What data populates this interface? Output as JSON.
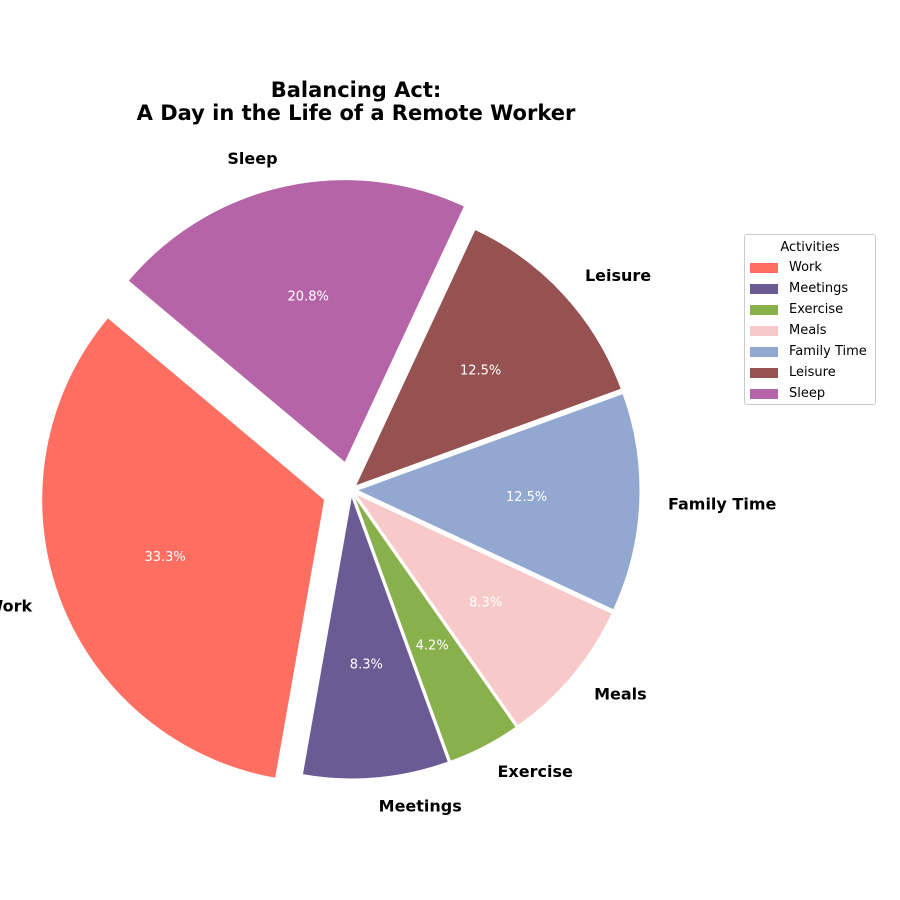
{
  "chart_data": {
    "type": "pie",
    "title_lines": [
      "Balancing Act:",
      "A Day in the Life of a Remote Worker"
    ],
    "categories": [
      "Work",
      "Meetings",
      "Exercise",
      "Meals",
      "Family Time",
      "Leisure",
      "Sleep"
    ],
    "values": [
      8,
      2,
      1,
      2,
      3,
      3,
      5
    ],
    "percent_labels": [
      "33.3%",
      "8.3%",
      "4.2%",
      "8.3%",
      "12.5%",
      "12.5%",
      "20.8%"
    ],
    "colors": [
      "#FF6F61",
      "#6B5B95",
      "#88B04B",
      "#F7CAC9",
      "#92A8D1",
      "#955251",
      "#B565A7"
    ],
    "exploded": [
      "Work",
      "Sleep"
    ],
    "start_angle_deg": 140,
    "direction": "counterclockwise",
    "legend": {
      "title": "Activities",
      "placement": "right",
      "entries": [
        "Work",
        "Meetings",
        "Exercise",
        "Meals",
        "Family Time",
        "Leisure",
        "Sleep"
      ]
    }
  }
}
